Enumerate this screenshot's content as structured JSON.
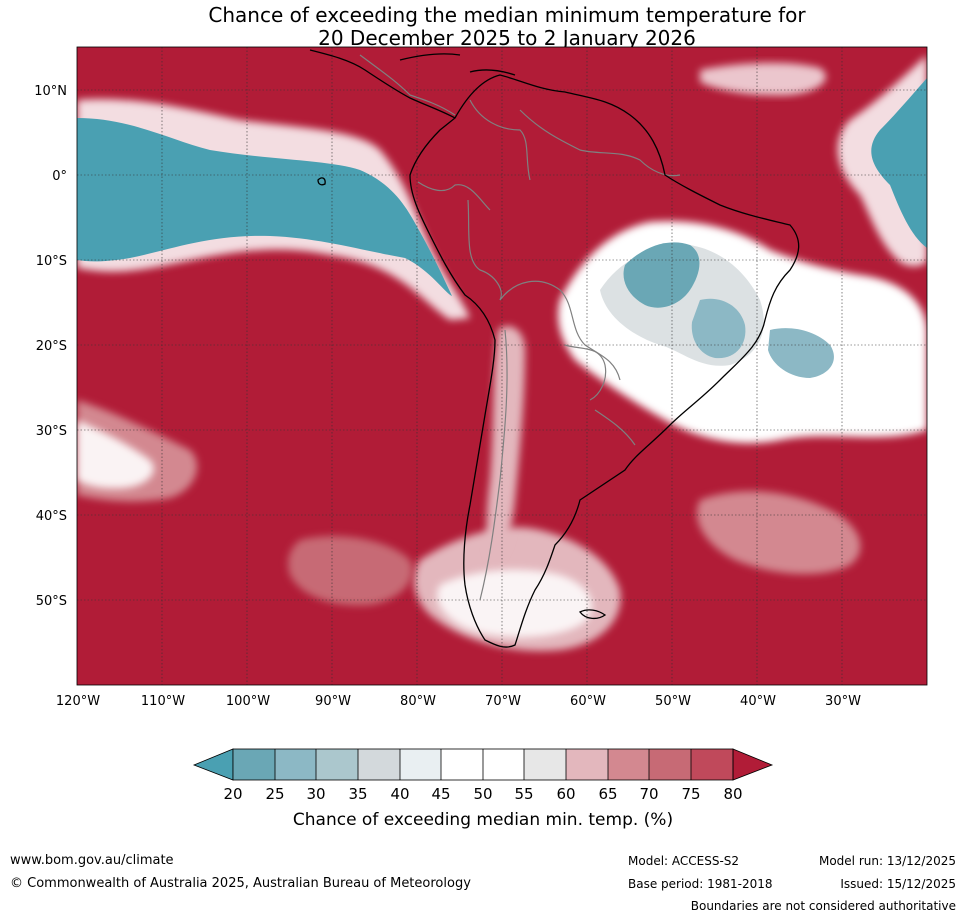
{
  "title": {
    "line1": "Chance of exceeding the median minimum temperature for",
    "line2": "20 December 2025 to 2 January 2026"
  },
  "lat_labels": [
    "10°N",
    "0°",
    "10°S",
    "20°S",
    "30°S",
    "40°S",
    "50°S"
  ],
  "lon_labels": [
    "120°W",
    "110°W",
    "100°W",
    "90°W",
    "80°W",
    "70°W",
    "60°W",
    "50°W",
    "40°W",
    "30°W"
  ],
  "map_extent": {
    "lon_min": -120,
    "lon_max": -20,
    "lat_min": -60,
    "lat_max": 15
  },
  "colorbar": {
    "label": "Chance of exceeding median min. temp. (%)",
    "ticks": [
      "20",
      "25",
      "30",
      "35",
      "40",
      "45",
      "50",
      "55",
      "60",
      "65",
      "70",
      "75",
      "80"
    ],
    "colors": [
      "#4aa0b2",
      "#6aa7b5",
      "#8cb8c5",
      "#abc7cd",
      "#d3d9dc",
      "#e9eff2",
      "#ffffff",
      "#ffffff",
      "#e7e7e7",
      "#e3b7bd",
      "#d38890",
      "#c76a75",
      "#c0495b",
      "#b11c37"
    ]
  },
  "colors": {
    "warm_high": "#b11c37",
    "cool_low": "#4aa0b2"
  },
  "footer": {
    "website": "www.bom.gov.au/climate",
    "copyright": "© Commonwealth of Australia 2025, Australian Bureau of Meteorology",
    "model": "Model: ACCESS-S2",
    "model_run": "Model run: 13/12/2025",
    "base_period": "Base period: 1981-2018",
    "issued": "Issued: 15/12/2025",
    "disclaimer": "Boundaries are not considered authoritative"
  }
}
